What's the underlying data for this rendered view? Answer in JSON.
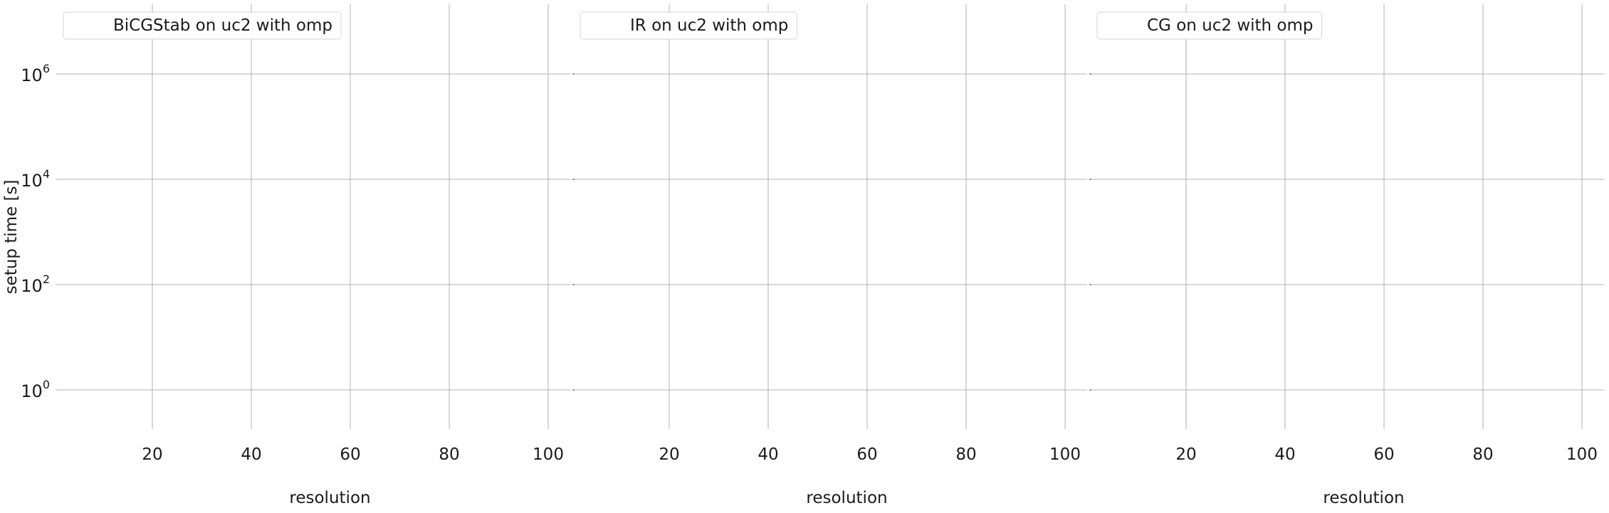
{
  "chart_data": [
    {
      "type": "line",
      "legend": "BiCGStab on uc2 with omp",
      "legend_position": "upper-left",
      "xlabel": "resolution",
      "ylabel": "setup time [s]",
      "x_ticks": [
        20,
        40,
        60,
        80,
        100
      ],
      "y_ticks": [
        {
          "value": 1,
          "base": "10",
          "exp": "0"
        },
        {
          "value": 100,
          "base": "10",
          "exp": "2"
        },
        {
          "value": 10000,
          "base": "10",
          "exp": "4"
        },
        {
          "value": 1000000,
          "base": "10",
          "exp": "6"
        }
      ],
      "y_scale": "log",
      "grid": true,
      "series": []
    },
    {
      "type": "line",
      "legend": "IR on uc2 with omp",
      "legend_position": "upper-left",
      "xlabel": "resolution",
      "ylabel": "",
      "x_ticks": [
        20,
        40,
        60,
        80,
        100
      ],
      "y_scale": "log",
      "grid": true,
      "series": []
    },
    {
      "type": "line",
      "legend": "CG on uc2 with omp",
      "legend_position": "upper-left",
      "xlabel": "resolution",
      "ylabel": "",
      "x_ticks": [
        20,
        40,
        60,
        80,
        100
      ],
      "y_scale": "log",
      "grid": true,
      "series": []
    }
  ]
}
